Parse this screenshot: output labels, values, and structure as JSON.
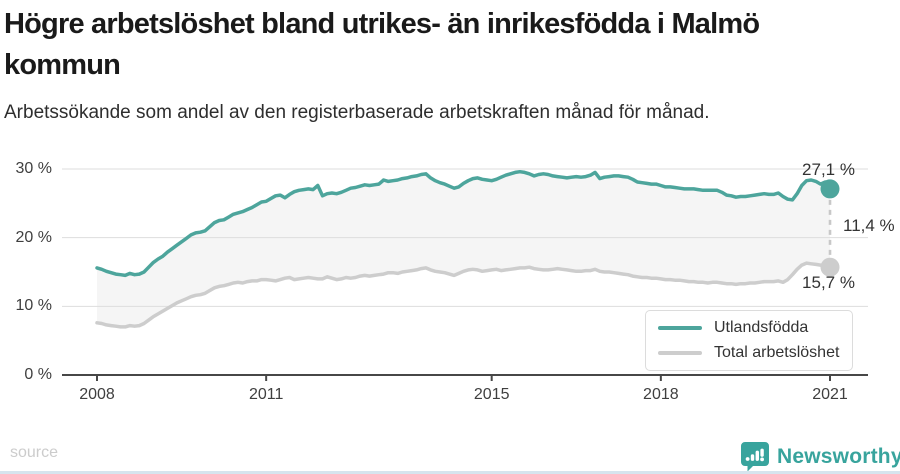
{
  "page": {
    "title_line1": "Högre arbetslöshet bland utrikes- än inrikesfödda i Malmö",
    "title_line2": "kommun",
    "subtitle": "Arbetssökande som andel av den registerbaserade arbetskraften månad för månad.",
    "source_label": "source",
    "brand": {
      "name": "Newsworthy",
      "color": "#38a49d",
      "icon": "speech-bubble-bar-chart"
    }
  },
  "chart_data": {
    "type": "line",
    "title": "Högre arbetslöshet bland utrikes- än inrikesfödda i Malmö kommun",
    "subtitle": "Arbetssökande som andel av den registerbaserade arbetskraften månad för månad.",
    "x_unit": "month",
    "x_start": "2008-01",
    "x_end": "2021-01",
    "x_ticks": [
      "2008",
      "2011",
      "2015",
      "2018",
      "2021"
    ],
    "x_tick_years": [
      2008,
      2011,
      2015,
      2018,
      2021
    ],
    "y_ticks": [
      0,
      10,
      20,
      30
    ],
    "y_tick_suffix": " %",
    "ylim": [
      0,
      31
    ],
    "grid": true,
    "legend_position": "bottom-right",
    "fill_between_color": "#f5f5f5",
    "axis_color": "#474747",
    "grid_color": "#dddddd",
    "difference_label": "11,4 %",
    "series": [
      {
        "name": "Utlandsfödda",
        "color": "#4da59c",
        "end_value_label": "27,1 %",
        "end_value": 27.1,
        "values": [
          15.6,
          15.4,
          15.1,
          14.9,
          14.7,
          14.6,
          14.5,
          14.8,
          14.6,
          14.7,
          15.0,
          15.7,
          16.4,
          16.9,
          17.3,
          17.9,
          18.4,
          18.9,
          19.4,
          19.9,
          20.4,
          20.7,
          20.8,
          21.0,
          21.6,
          22.2,
          22.5,
          22.6,
          23.0,
          23.4,
          23.6,
          23.8,
          24.1,
          24.4,
          24.8,
          25.2,
          25.3,
          25.7,
          26.1,
          26.2,
          25.8,
          26.3,
          26.7,
          26.9,
          27.0,
          27.1,
          27.0,
          27.6,
          26.1,
          26.4,
          26.5,
          26.4,
          26.6,
          26.9,
          27.2,
          27.3,
          27.5,
          27.7,
          27.6,
          27.7,
          27.8,
          28.4,
          28.2,
          28.3,
          28.4,
          28.6,
          28.7,
          28.9,
          29.0,
          29.2,
          29.3,
          28.7,
          28.3,
          28.0,
          27.8,
          27.5,
          27.2,
          27.4,
          27.9,
          28.3,
          28.6,
          28.7,
          28.5,
          28.4,
          28.3,
          28.5,
          28.8,
          29.1,
          29.3,
          29.5,
          29.6,
          29.5,
          29.3,
          29.0,
          29.2,
          29.3,
          29.2,
          29.0,
          28.9,
          28.8,
          28.7,
          28.8,
          28.9,
          28.8,
          28.9,
          29.1,
          29.5,
          28.6,
          28.8,
          28.9,
          29.0,
          29.0,
          28.9,
          28.8,
          28.5,
          28.1,
          28.0,
          27.9,
          27.8,
          27.8,
          27.6,
          27.4,
          27.4,
          27.3,
          27.2,
          27.1,
          27.1,
          27.1,
          27.0,
          26.9,
          26.9,
          26.9,
          26.9,
          26.6,
          26.2,
          26.1,
          25.9,
          26.0,
          26.0,
          26.1,
          26.2,
          26.3,
          26.4,
          26.3,
          26.3,
          26.5,
          26.0,
          25.6,
          25.5,
          26.4,
          27.6,
          28.3,
          28.4,
          28.2,
          27.8,
          28.1,
          27.1
        ]
      },
      {
        "name": "Total arbetslöshet",
        "color": "#cdcdcd",
        "end_value_label": "15,7 %",
        "end_value": 15.7,
        "values": [
          7.6,
          7.5,
          7.3,
          7.2,
          7.1,
          7.0,
          7.0,
          7.2,
          7.1,
          7.2,
          7.5,
          8.0,
          8.5,
          8.9,
          9.3,
          9.7,
          10.1,
          10.5,
          10.8,
          11.1,
          11.4,
          11.6,
          11.7,
          11.9,
          12.3,
          12.7,
          12.9,
          13.0,
          13.2,
          13.4,
          13.5,
          13.4,
          13.6,
          13.7,
          13.7,
          13.9,
          13.9,
          13.8,
          13.7,
          13.9,
          14.1,
          14.2,
          13.9,
          14.0,
          14.1,
          14.2,
          14.1,
          14.0,
          14.0,
          14.3,
          14.1,
          13.9,
          14.0,
          14.2,
          14.1,
          14.2,
          14.4,
          14.5,
          14.4,
          14.5,
          14.6,
          14.7,
          14.9,
          14.9,
          14.8,
          15.0,
          15.1,
          15.2,
          15.3,
          15.5,
          15.6,
          15.3,
          15.1,
          15.0,
          14.9,
          14.7,
          14.5,
          14.8,
          15.1,
          15.3,
          15.4,
          15.3,
          15.1,
          15.2,
          15.3,
          15.4,
          15.2,
          15.3,
          15.4,
          15.5,
          15.6,
          15.6,
          15.7,
          15.5,
          15.4,
          15.3,
          15.3,
          15.4,
          15.5,
          15.4,
          15.3,
          15.2,
          15.1,
          15.1,
          15.2,
          15.2,
          15.4,
          15.1,
          15.0,
          15.0,
          14.9,
          14.8,
          14.7,
          14.6,
          14.4,
          14.3,
          14.2,
          14.2,
          14.1,
          14.1,
          14.0,
          13.9,
          13.9,
          13.8,
          13.8,
          13.7,
          13.6,
          13.6,
          13.5,
          13.5,
          13.4,
          13.5,
          13.5,
          13.4,
          13.3,
          13.3,
          13.2,
          13.3,
          13.3,
          13.4,
          13.4,
          13.5,
          13.6,
          13.6,
          13.6,
          13.7,
          13.5,
          13.9,
          14.6,
          15.4,
          16.0,
          16.3,
          16.2,
          16.1,
          16.0,
          15.9,
          15.7
        ]
      }
    ]
  }
}
